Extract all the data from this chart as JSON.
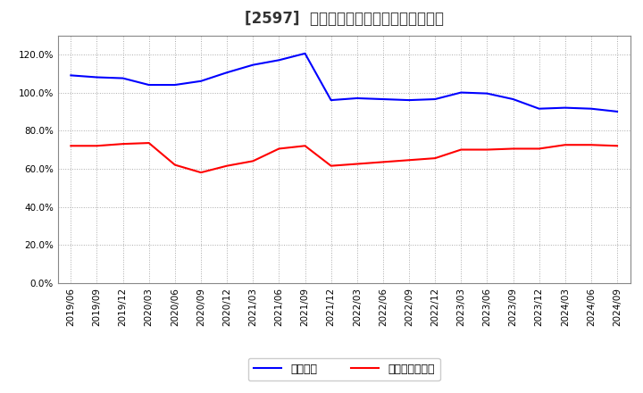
{
  "title": "[2597]  固定比率、固定長期適合率の推移",
  "x_labels": [
    "2019/06",
    "2019/09",
    "2019/12",
    "2020/03",
    "2020/06",
    "2020/09",
    "2020/12",
    "2021/03",
    "2021/06",
    "2021/09",
    "2021/12",
    "2022/03",
    "2022/06",
    "2022/09",
    "2022/12",
    "2023/03",
    "2023/06",
    "2023/09",
    "2023/12",
    "2024/03",
    "2024/06",
    "2024/09"
  ],
  "fixed_ratio": [
    109.0,
    108.0,
    107.5,
    104.0,
    104.0,
    106.0,
    110.5,
    114.5,
    117.0,
    120.5,
    96.0,
    97.0,
    96.5,
    96.0,
    96.5,
    100.0,
    99.5,
    96.5,
    91.5,
    92.0,
    91.5,
    90.0
  ],
  "fixed_long_ratio": [
    72.0,
    72.0,
    73.0,
    73.5,
    62.0,
    58.0,
    61.5,
    64.0,
    70.5,
    72.0,
    61.5,
    62.5,
    63.5,
    64.5,
    65.5,
    70.0,
    70.0,
    70.5,
    70.5,
    72.5,
    72.5,
    72.0
  ],
  "line1_color": "#0000FF",
  "line2_color": "#FF0000",
  "background_color": "#FFFFFF",
  "grid_color": "#AAAAAA",
  "ylim": [
    0,
    130
  ],
  "yticks": [
    0,
    20,
    40,
    60,
    80,
    100,
    120
  ],
  "legend1": "固定比率",
  "legend2": "固定長期適合率",
  "title_fontsize": 12,
  "axis_fontsize": 7.5
}
